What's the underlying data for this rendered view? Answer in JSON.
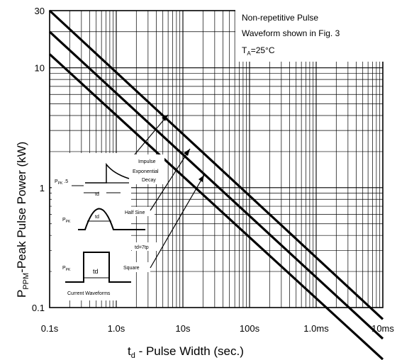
{
  "chart_data": {
    "type": "line",
    "xlabel_main": "t",
    "xlabel_sub": "d",
    "xlabel_rest": " - Pulse Width (sec.)",
    "ylabel_main": "P",
    "ylabel_sub": "PPM",
    "ylabel_rest": "-Peak Pulse Power (kW)",
    "x_scale": "log",
    "y_scale": "log",
    "xlim": [
      "0.1us",
      "10ms"
    ],
    "ylim": [
      0.1,
      30
    ],
    "x_tick_labels": [
      "0.1s",
      "1.0s",
      "10s",
      "100s",
      "1.0ms",
      "10ms"
    ],
    "y_tick_labels": [
      "30",
      "10",
      "1",
      "0.1"
    ],
    "grid": true,
    "annotation": {
      "line1": "Non-repetitive Pulse",
      "line2": "Waveform shown in Fig. 3",
      "line3_main": "T",
      "line3_sub": "A",
      "line3_rest": "=25°C"
    },
    "series": [
      {
        "name": "Impulse Exponential Decay",
        "x": [
          "0.1us",
          "10ms"
        ],
        "y": [
          30,
          0.08
        ]
      },
      {
        "name": "Half Sine",
        "x": [
          "0.1us",
          "10ms"
        ],
        "y": [
          20,
          0.055
        ]
      },
      {
        "name": "Square",
        "x": [
          "0.1us",
          "10ms"
        ],
        "y": [
          13,
          0.037
        ]
      }
    ],
    "curve_labels": {
      "impulse_1": "Impulse",
      "impulse_2": "Exponential",
      "impulse_3": "Decay",
      "half_sine": "Half Sine",
      "square": "Square"
    },
    "inset": {
      "ppk_label": "P",
      "ppk_sub": "PK",
      "ppk_extra": " .5",
      "td_label": "td",
      "td_eq": "td=7tp",
      "caption": "Current Waveforms"
    }
  }
}
